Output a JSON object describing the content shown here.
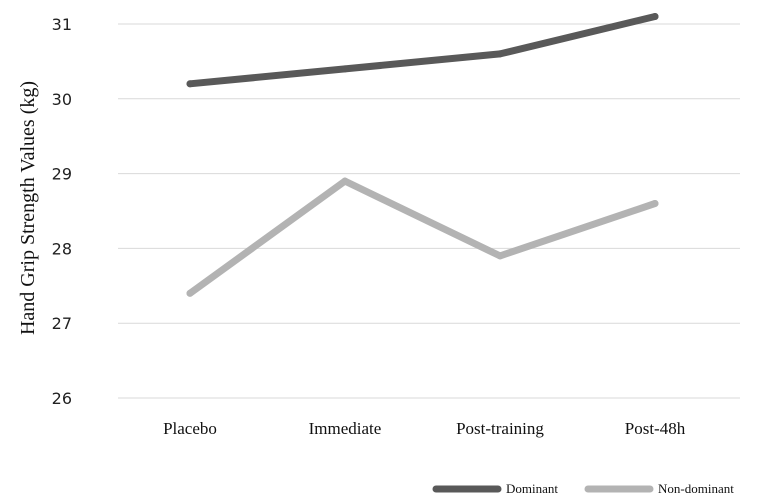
{
  "chart_data": {
    "type": "line",
    "title": "",
    "xlabel": "",
    "ylabel": "Hand Grip Strength Values (kg)",
    "categories": [
      "Placebo",
      "Immediate",
      "Post-training",
      "Post-48h"
    ],
    "yticks": [
      "26",
      "27",
      "28",
      "29",
      "30",
      "31"
    ],
    "ylim": [
      26,
      31
    ],
    "grid": true,
    "legend_position": "bottom-right",
    "series": [
      {
        "name": "Dominant",
        "values": [
          30.2,
          30.4,
          30.6,
          31.1
        ],
        "color": "#595959"
      },
      {
        "name": "Non-dominant",
        "values": [
          27.4,
          28.9,
          27.9,
          28.6
        ],
        "color": "#b3b3b3"
      }
    ]
  }
}
